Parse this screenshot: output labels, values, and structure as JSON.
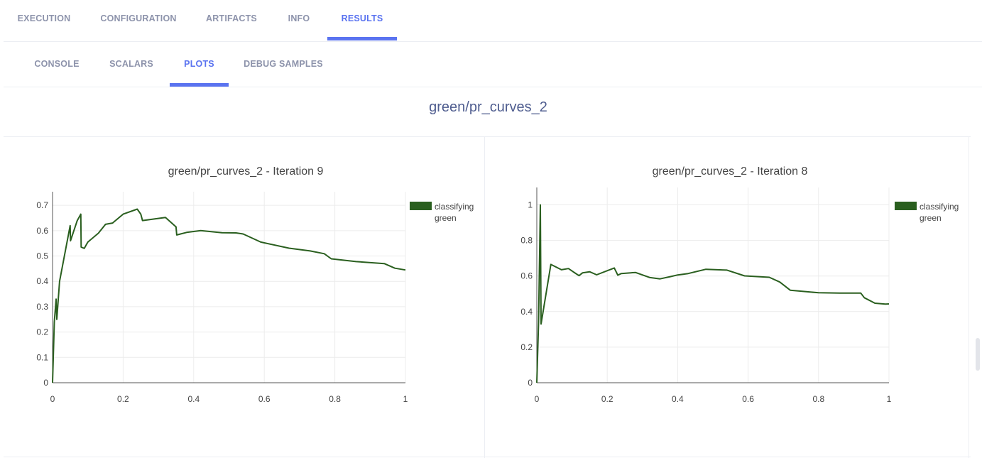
{
  "top_tabs": [
    {
      "label": "EXECUTION",
      "active": false
    },
    {
      "label": "CONFIGURATION",
      "active": false
    },
    {
      "label": "ARTIFACTS",
      "active": false
    },
    {
      "label": "INFO",
      "active": false
    },
    {
      "label": "RESULTS",
      "active": true
    }
  ],
  "sub_tabs": [
    {
      "label": "CONSOLE",
      "active": false
    },
    {
      "label": "SCALARS",
      "active": false
    },
    {
      "label": "PLOTS",
      "active": true
    },
    {
      "label": "DEBUG SAMPLES",
      "active": false
    }
  ],
  "group_title": "green/pr_curves_2",
  "colors": {
    "accent": "#5a73f0",
    "series": "#2a5f1f"
  },
  "chart_data": [
    {
      "type": "line",
      "title": "green/pr_curves_2 - Iteration 9",
      "xlim": [
        0,
        1
      ],
      "ylim": [
        0,
        0.72
      ],
      "x_ticks": [
        "0",
        "0.2",
        "0.4",
        "0.6",
        "0.8",
        "1"
      ],
      "y_ticks": [
        "0",
        "0.1",
        "0.2",
        "0.3",
        "0.4",
        "0.5",
        "0.6",
        "0.7"
      ],
      "grid": true,
      "legend": "top-right",
      "series": [
        {
          "name": "classifying green",
          "x": [
            0,
            0.005,
            0.01,
            0.012,
            0.02,
            0.05,
            0.051,
            0.07,
            0.08,
            0.081,
            0.09,
            0.1,
            0.13,
            0.15,
            0.17,
            0.2,
            0.24,
            0.25,
            0.255,
            0.32,
            0.35,
            0.352,
            0.38,
            0.42,
            0.48,
            0.52,
            0.54,
            0.59,
            0.67,
            0.73,
            0.77,
            0.79,
            0.86,
            0.94,
            0.97,
            1.0
          ],
          "y": [
            0,
            0.24,
            0.33,
            0.25,
            0.4,
            0.62,
            0.56,
            0.64,
            0.665,
            0.535,
            0.53,
            0.555,
            0.59,
            0.625,
            0.63,
            0.665,
            0.685,
            0.665,
            0.64,
            0.652,
            0.615,
            0.583,
            0.593,
            0.6,
            0.592,
            0.591,
            0.587,
            0.555,
            0.531,
            0.52,
            0.509,
            0.489,
            0.478,
            0.47,
            0.452,
            0.445
          ]
        }
      ]
    },
    {
      "type": "line",
      "title": "green/pr_curves_2 - Iteration 8",
      "xlim": [
        0,
        1
      ],
      "ylim": [
        0,
        1.05
      ],
      "x_ticks": [
        "0",
        "0.2",
        "0.4",
        "0.6",
        "0.8",
        "1"
      ],
      "y_ticks": [
        "0",
        "0.2",
        "0.4",
        "0.6",
        "0.8",
        "1"
      ],
      "grid": true,
      "legend": "top-right",
      "series": [
        {
          "name": "classifying green",
          "x": [
            0,
            0.005,
            0.01,
            0.012,
            0.04,
            0.07,
            0.09,
            0.11,
            0.12,
            0.13,
            0.15,
            0.17,
            0.22,
            0.23,
            0.24,
            0.28,
            0.32,
            0.35,
            0.38,
            0.4,
            0.43,
            0.48,
            0.54,
            0.59,
            0.66,
            0.69,
            0.72,
            0.8,
            0.86,
            0.92,
            0.93,
            0.96,
            0.99,
            1.0
          ],
          "y": [
            0,
            0.34,
            1.0,
            0.33,
            0.665,
            0.635,
            0.642,
            0.615,
            0.602,
            0.618,
            0.624,
            0.607,
            0.645,
            0.605,
            0.614,
            0.62,
            0.592,
            0.584,
            0.597,
            0.606,
            0.614,
            0.638,
            0.633,
            0.601,
            0.593,
            0.566,
            0.52,
            0.506,
            0.504,
            0.504,
            0.478,
            0.447,
            0.442,
            0.443
          ]
        }
      ]
    }
  ]
}
